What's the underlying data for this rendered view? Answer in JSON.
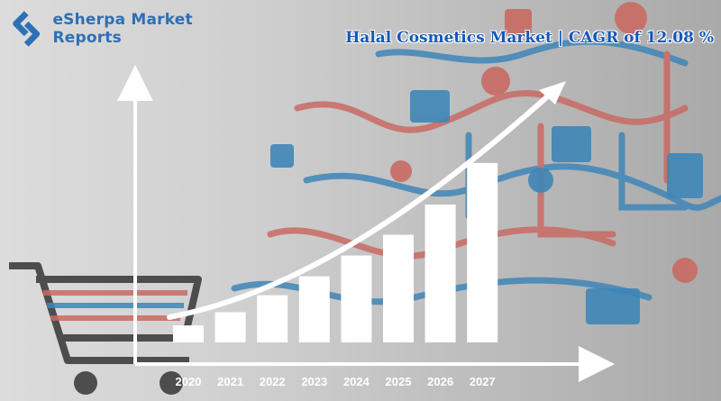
{
  "brand": {
    "name": "eSherpa Market Reports",
    "logo_icon": "esherpa-logo-icon",
    "color": "#2f6fb5"
  },
  "headline": "Halal Cosmetics Market | CAGR of 12.08 %",
  "colors": {
    "bars": "#ffffff",
    "axis": "#ffffff",
    "trend": "#ffffff",
    "headline": "#1658b8",
    "icons_red": "#c96a63",
    "icons_blue": "#3f86b8"
  },
  "chart_data": {
    "type": "bar",
    "title": "Halal Cosmetics Market | CAGR of 12.08 %",
    "categories": [
      "2020",
      "2021",
      "2022",
      "2023",
      "2024",
      "2025",
      "2026",
      "2027"
    ],
    "values": [
      9,
      16,
      25,
      35,
      46,
      57,
      73,
      95
    ],
    "xlabel": "",
    "ylabel": "",
    "ylim": [
      0,
      135
    ],
    "grid": false,
    "legend": "none",
    "trend_arrow": true
  }
}
